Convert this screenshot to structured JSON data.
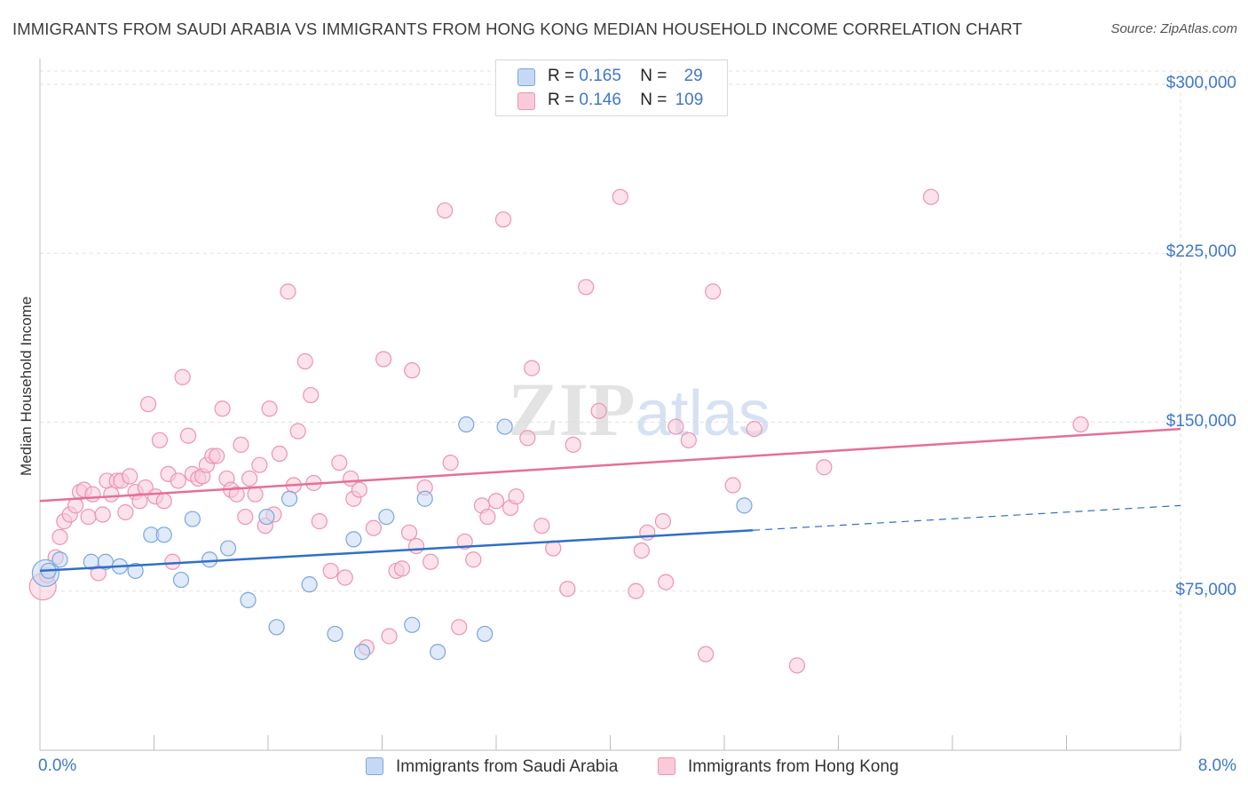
{
  "title": "IMMIGRANTS FROM SAUDI ARABIA VS IMMIGRANTS FROM HONG KONG MEDIAN HOUSEHOLD INCOME CORRELATION CHART",
  "source": "Source: ZipAtlas.com",
  "colors": {
    "saudi_fill": "#c6d9f4",
    "saudi_stroke": "#7aa6e0",
    "saudi_line": "#2e6fc9",
    "hk_fill": "#f9cad8",
    "hk_stroke": "#ec94b1",
    "hk_line": "#e56f97",
    "tick_text": "#3f78c8",
    "grid": "#e2e2e2"
  },
  "legend_top": {
    "saudi": {
      "r_label": "R =",
      "r_value": "0.165",
      "n_label": "N =",
      "n_value": "29"
    },
    "hk": {
      "r_label": "R =",
      "r_value": "0.146",
      "n_label": "N =",
      "n_value": "109"
    }
  },
  "legend_bottom": {
    "saudi": "Immigrants from Saudi Arabia",
    "hk": "Immigrants from Hong Kong"
  },
  "watermark": "ZIPatlas",
  "chart_data": {
    "type": "scatter",
    "title": "IMMIGRANTS FROM SAUDI ARABIA VS IMMIGRANTS FROM HONG KONG MEDIAN HOUSEHOLD INCOME CORRELATION CHART",
    "ylabel": "Median Household Income",
    "xlabel": "",
    "xlim": [
      0,
      8.0
    ],
    "ylim": [
      0,
      310000
    ],
    "x_tick_labels": [
      "0.0%",
      "8.0%"
    ],
    "y_ticks": [
      75000,
      150000,
      225000,
      300000
    ],
    "y_tick_labels": [
      "$75,000",
      "$150,000",
      "$225,000",
      "$300,000"
    ],
    "grid": true,
    "legend_position": "top-center",
    "series": [
      {
        "name": "Immigrants from Saudi Arabia",
        "R": 0.165,
        "N": 29,
        "trend": {
          "x0": 0.0,
          "y0": 84000,
          "x1": 5.0,
          "y1": 102000,
          "dashed_to_x": 8.0,
          "dashed_to_y": 113000
        },
        "points": [
          [
            0.04,
            83000,
            "large"
          ],
          [
            0.14,
            89000,
            "normal"
          ],
          [
            0.36,
            88000,
            "normal"
          ],
          [
            0.46,
            88000,
            "normal"
          ],
          [
            0.56,
            86000,
            "normal"
          ],
          [
            0.67,
            84000,
            "normal"
          ],
          [
            0.78,
            100000,
            "normal"
          ],
          [
            0.87,
            100000,
            "normal"
          ],
          [
            0.99,
            80000,
            "normal"
          ],
          [
            1.07,
            107000,
            "normal"
          ],
          [
            1.19,
            89000,
            "normal"
          ],
          [
            1.32,
            94000,
            "normal"
          ],
          [
            1.46,
            71000,
            "normal"
          ],
          [
            1.59,
            108000,
            "normal"
          ],
          [
            1.66,
            59000,
            "normal"
          ],
          [
            1.75,
            116000,
            "normal"
          ],
          [
            1.89,
            78000,
            "normal"
          ],
          [
            2.07,
            56000,
            "normal"
          ],
          [
            2.2,
            98000,
            "normal"
          ],
          [
            2.26,
            48000,
            "normal"
          ],
          [
            2.43,
            108000,
            "normal"
          ],
          [
            2.61,
            60000,
            "normal"
          ],
          [
            2.7,
            116000,
            "normal"
          ],
          [
            2.79,
            48000,
            "normal"
          ],
          [
            2.99,
            149000,
            "normal"
          ],
          [
            3.12,
            56000,
            "normal"
          ],
          [
            3.26,
            148000,
            "normal"
          ],
          [
            4.94,
            113000,
            "normal"
          ],
          [
            0.06,
            84000,
            "normal"
          ]
        ]
      },
      {
        "name": "Immigrants from Hong Kong",
        "R": 0.146,
        "N": 109,
        "trend": {
          "x0": 0.0,
          "y0": 115000,
          "x1": 8.0,
          "y1": 147000
        },
        "points": [
          [
            0.02,
            77000,
            "large"
          ],
          [
            0.05,
            82000,
            "normal"
          ],
          [
            0.11,
            90000,
            "normal"
          ],
          [
            0.14,
            99000,
            "normal"
          ],
          [
            0.17,
            106000,
            "normal"
          ],
          [
            0.21,
            109000,
            "normal"
          ],
          [
            0.25,
            113000,
            "normal"
          ],
          [
            0.28,
            119000,
            "normal"
          ],
          [
            0.31,
            120000,
            "normal"
          ],
          [
            0.34,
            108000,
            "normal"
          ],
          [
            0.37,
            118000,
            "normal"
          ],
          [
            0.41,
            83000,
            "normal"
          ],
          [
            0.44,
            109000,
            "normal"
          ],
          [
            0.47,
            124000,
            "normal"
          ],
          [
            0.5,
            118000,
            "normal"
          ],
          [
            0.54,
            124000,
            "normal"
          ],
          [
            0.57,
            124000,
            "normal"
          ],
          [
            0.6,
            110000,
            "normal"
          ],
          [
            0.63,
            126000,
            "normal"
          ],
          [
            0.67,
            119000,
            "normal"
          ],
          [
            0.7,
            115000,
            "normal"
          ],
          [
            0.74,
            121000,
            "normal"
          ],
          [
            0.76,
            158000,
            "normal"
          ],
          [
            0.81,
            117000,
            "normal"
          ],
          [
            0.84,
            142000,
            "normal"
          ],
          [
            0.87,
            115000,
            "normal"
          ],
          [
            0.9,
            127000,
            "normal"
          ],
          [
            0.93,
            88000,
            "normal"
          ],
          [
            0.97,
            124000,
            "normal"
          ],
          [
            1.0,
            170000,
            "normal"
          ],
          [
            1.04,
            144000,
            "normal"
          ],
          [
            1.07,
            127000,
            "normal"
          ],
          [
            1.11,
            125000,
            "normal"
          ],
          [
            1.14,
            126000,
            "normal"
          ],
          [
            1.17,
            131000,
            "normal"
          ],
          [
            1.21,
            135000,
            "normal"
          ],
          [
            1.24,
            135000,
            "normal"
          ],
          [
            1.28,
            156000,
            "normal"
          ],
          [
            1.31,
            125000,
            "normal"
          ],
          [
            1.34,
            120000,
            "normal"
          ],
          [
            1.38,
            118000,
            "normal"
          ],
          [
            1.41,
            140000,
            "normal"
          ],
          [
            1.44,
            108000,
            "normal"
          ],
          [
            1.47,
            125000,
            "normal"
          ],
          [
            1.51,
            118000,
            "normal"
          ],
          [
            1.54,
            131000,
            "normal"
          ],
          [
            1.58,
            104000,
            "normal"
          ],
          [
            1.61,
            156000,
            "normal"
          ],
          [
            1.64,
            109000,
            "normal"
          ],
          [
            1.68,
            136000,
            "normal"
          ],
          [
            1.74,
            208000,
            "normal"
          ],
          [
            1.78,
            122000,
            "normal"
          ],
          [
            1.81,
            146000,
            "normal"
          ],
          [
            1.86,
            177000,
            "normal"
          ],
          [
            1.9,
            162000,
            "normal"
          ],
          [
            1.92,
            123000,
            "normal"
          ],
          [
            1.96,
            106000,
            "normal"
          ],
          [
            2.04,
            84000,
            "normal"
          ],
          [
            2.1,
            132000,
            "normal"
          ],
          [
            2.14,
            81000,
            "normal"
          ],
          [
            2.18,
            125000,
            "normal"
          ],
          [
            2.2,
            116000,
            "normal"
          ],
          [
            2.24,
            120000,
            "normal"
          ],
          [
            2.29,
            50000,
            "normal"
          ],
          [
            2.34,
            103000,
            "normal"
          ],
          [
            2.41,
            178000,
            "normal"
          ],
          [
            2.45,
            55000,
            "normal"
          ],
          [
            2.5,
            84000,
            "normal"
          ],
          [
            2.54,
            85000,
            "normal"
          ],
          [
            2.59,
            101000,
            "normal"
          ],
          [
            2.61,
            173000,
            "normal"
          ],
          [
            2.64,
            95000,
            "normal"
          ],
          [
            2.7,
            121000,
            "normal"
          ],
          [
            2.74,
            88000,
            "normal"
          ],
          [
            2.84,
            244000,
            "normal"
          ],
          [
            2.88,
            132000,
            "normal"
          ],
          [
            2.94,
            59000,
            "normal"
          ],
          [
            2.98,
            97000,
            "normal"
          ],
          [
            3.04,
            89000,
            "normal"
          ],
          [
            3.1,
            113000,
            "normal"
          ],
          [
            3.14,
            108000,
            "normal"
          ],
          [
            3.2,
            115000,
            "normal"
          ],
          [
            3.25,
            240000,
            "normal"
          ],
          [
            3.3,
            112000,
            "normal"
          ],
          [
            3.45,
            174000,
            "normal"
          ],
          [
            3.52,
            104000,
            "normal"
          ],
          [
            3.6,
            94000,
            "normal"
          ],
          [
            3.7,
            76000,
            "normal"
          ],
          [
            3.74,
            140000,
            "normal"
          ],
          [
            3.83,
            210000,
            "normal"
          ],
          [
            3.92,
            155000,
            "normal"
          ],
          [
            4.07,
            250000,
            "normal"
          ],
          [
            4.18,
            75000,
            "normal"
          ],
          [
            4.22,
            93000,
            "normal"
          ],
          [
            4.26,
            101000,
            "normal"
          ],
          [
            4.39,
            79000,
            "normal"
          ],
          [
            4.46,
            148000,
            "normal"
          ],
          [
            4.55,
            142000,
            "normal"
          ],
          [
            4.67,
            47000,
            "normal"
          ],
          [
            4.72,
            208000,
            "normal"
          ],
          [
            4.86,
            122000,
            "normal"
          ],
          [
            5.01,
            147000,
            "normal"
          ],
          [
            5.31,
            42000,
            "normal"
          ],
          [
            5.5,
            130000,
            "normal"
          ],
          [
            6.25,
            250000,
            "normal"
          ],
          [
            7.3,
            149000,
            "normal"
          ],
          [
            3.42,
            143000,
            "normal"
          ],
          [
            4.37,
            106000,
            "normal"
          ],
          [
            3.34,
            117000,
            "normal"
          ]
        ]
      }
    ]
  }
}
